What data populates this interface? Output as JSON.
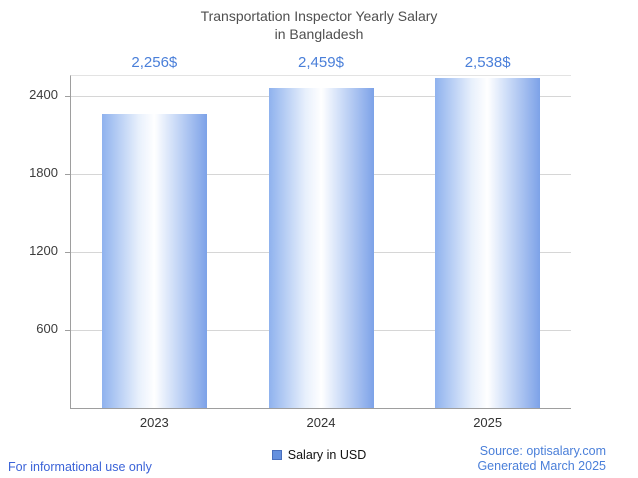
{
  "title": {
    "line1": "Transportation Inspector Yearly Salary",
    "line2": "in Bangladesh"
  },
  "chart_data": {
    "type": "bar",
    "title": "Transportation Inspector Yearly Salary in Bangladesh",
    "categories": [
      "2023",
      "2024",
      "2025"
    ],
    "values": [
      2256,
      2459,
      2538
    ],
    "value_labels": [
      "2,256$",
      "2,459$",
      "2,538$"
    ],
    "xlabel": "",
    "ylabel": "",
    "ylim": [
      0,
      2550
    ],
    "yticks": [
      600,
      1200,
      1800,
      2400
    ],
    "grid": true,
    "legend_position": "bottom",
    "series_name": "Salary in USD",
    "bar_gradient": [
      "#8fb2ee",
      "#ffffff",
      "#7da2e8"
    ],
    "annotation_color": "#4a7fd9"
  },
  "legend": {
    "label": "Salary in USD",
    "swatch_color": "#6590de"
  },
  "footer": {
    "left": "For informational use only",
    "source": "Source: optisalary.com",
    "generated": "Generated March 2025"
  }
}
